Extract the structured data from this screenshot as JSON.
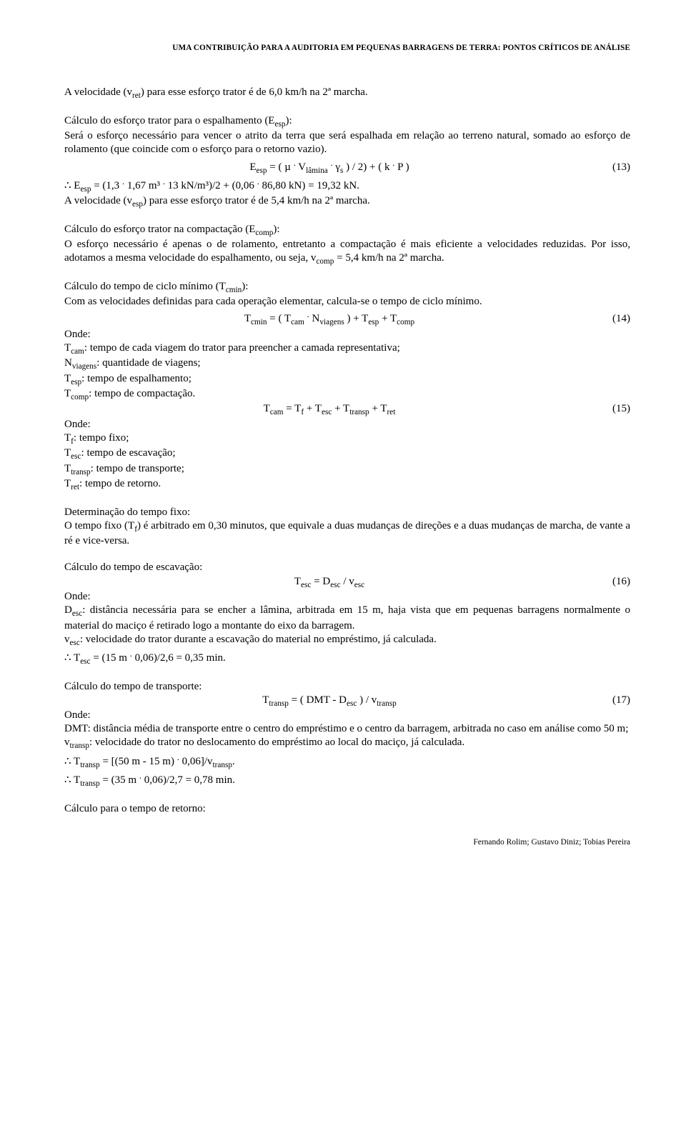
{
  "header": "UMA CONTRIBUIÇÃO PARA A AUDITORIA EM PEQUENAS BARRAGENS DE TERRA: PONTOS CRÍTICOS DE ANÁLISE",
  "p1": "A velocidade (vret) para esse esforço trator é de 6,0 km/h na 2ª marcha.",
  "p2_title": "Cálculo do esforço trator para o espalhamento (Eesp):",
  "p2_body": "Será o esforço necessário para vencer o atrito da terra que será espalhada em relação ao terreno natural, somado ao esforço de rolamento (que coincide com o esforço para o retorno vazio).",
  "eq13": "Eesp = ( µ . Vlâmina . γs ) / 2) + ( k . P )",
  "eq13_num": "(13)",
  "p2_calc": "∴ Eesp = (1,3 . 1,67 m³ . 13 kN/m³)/2 + (0,06 . 86,80 kN) = 19,32 kN.",
  "p2_vel": "A velocidade (vesp) para esse esforço trator é de 5,4 km/h na 2ª marcha.",
  "p3_title": "Cálculo do esforço trator na compactação (Ecomp):",
  "p3_body": "O esforço necessário é apenas o de rolamento, entretanto a compactação é mais eficiente a velocidades reduzidas. Por isso, adotamos a mesma velocidade do espalhamento, ou seja, vcomp = 5,4 km/h na 2ª marcha.",
  "p4_title": "Cálculo do tempo de ciclo mínimo (Tcmin):",
  "p4_body": "Com as velocidades definidas para cada operação elementar, calcula-se o tempo de ciclo mínimo.",
  "eq14": "Tcmin = ( Tcam . Nviagens ) + Tesp + Tcomp",
  "eq14_num": "(14)",
  "onde": "Onde:",
  "p4_d1": "Tcam: tempo de cada viagem do trator para preencher a camada representativa;",
  "p4_d2": "Nviagens: quantidade de viagens;",
  "p4_d3": "Tesp: tempo de espalhamento;",
  "p4_d4": "Tcomp: tempo de compactação.",
  "eq15": "Tcam = Tf + Tesc + Ttransp + Tret",
  "eq15_num": "(15)",
  "p4_d5": "Tf: tempo fixo;",
  "p4_d6": "Tesc: tempo de escavação;",
  "p4_d7": "Ttransp: tempo de transporte;",
  "p4_d8": "Tret: tempo de retorno.",
  "p5_title": "Determinação do tempo fixo:",
  "p5_body": "O tempo fixo (Tf) é arbitrado em 0,30 minutos, que equivale a duas mudanças de direções e a duas mudanças de marcha, de vante a ré e vice-versa.",
  "p6_title": "Cálculo do tempo de escavação:",
  "eq16": "Tesc = Desc / vesc",
  "eq16_num": "(16)",
  "p6_d1": "Desc: distância necessária para se encher a lâmina, arbitrada em 15 m, haja vista que em pequenas barragens normalmente o material do maciço é retirado logo a montante do eixo da barragem.",
  "p6_d2": "vesc: velocidade do trator durante a escavação do material no empréstimo, já calculada.",
  "p6_calc": "∴ Tesc = (15 m . 0,06)/2,6 = 0,35 min.",
  "p7_title": "Cálculo do tempo de transporte:",
  "eq17": "Ttransp = ( DMT - Desc ) / vtransp",
  "eq17_num": "(17)",
  "p7_d1": "DMT: distância média de transporte entre o centro do empréstimo e o centro da barragem, arbitrada no caso em análise como 50 m;",
  "p7_d2": "vtransp: velocidade do trator no deslocamento do empréstimo ao local do maciço, já calculada.",
  "p7_calc1": "∴ Ttransp = [(50 m - 15 m) . 0,06]/vtransp.",
  "p7_calc2": "∴ Ttransp = (35 m . 0,06)/2,7 = 0,78 min.",
  "p8": "Cálculo para o tempo de retorno:",
  "footer": "Fernando Rolim; Gustavo Diniz; Tobias Pereira"
}
